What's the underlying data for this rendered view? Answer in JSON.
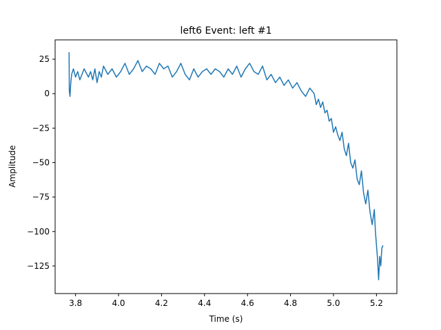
{
  "chart_data": {
    "type": "line",
    "title": "left6 Event: left #1",
    "xlabel": "Time (s)",
    "ylabel": "Amplitude",
    "xlim": [
      3.705,
      5.295
    ],
    "ylim": [
      -145,
      39
    ],
    "x_ticks": [
      3.8,
      4.0,
      4.2,
      4.4,
      4.6,
      4.8,
      5.0,
      5.2
    ],
    "x_tick_labels": [
      "3.8",
      "4.0",
      "4.2",
      "4.4",
      "4.6",
      "4.8",
      "5.0",
      "5.2"
    ],
    "y_ticks": [
      25,
      0,
      -25,
      -50,
      -75,
      -100,
      -125
    ],
    "y_tick_labels": [
      "25",
      "0",
      "−25",
      "−50",
      "−75",
      "−100",
      "−125"
    ],
    "grid": false,
    "series": [
      {
        "color": "#1f77b4",
        "x": [
          3.77,
          3.771,
          3.774,
          3.778,
          3.782,
          3.79,
          3.8,
          3.81,
          3.82,
          3.83,
          3.84,
          3.85,
          3.86,
          3.87,
          3.88,
          3.89,
          3.9,
          3.91,
          3.92,
          3.93,
          3.95,
          3.97,
          3.99,
          4.01,
          4.03,
          4.05,
          4.07,
          4.09,
          4.11,
          4.13,
          4.15,
          4.17,
          4.19,
          4.21,
          4.23,
          4.25,
          4.27,
          4.29,
          4.31,
          4.33,
          4.35,
          4.37,
          4.39,
          4.41,
          4.43,
          4.45,
          4.47,
          4.49,
          4.51,
          4.53,
          4.55,
          4.57,
          4.59,
          4.61,
          4.63,
          4.65,
          4.67,
          4.69,
          4.71,
          4.73,
          4.75,
          4.77,
          4.79,
          4.81,
          4.83,
          4.85,
          4.87,
          4.89,
          4.91,
          4.92,
          4.93,
          4.94,
          4.95,
          4.96,
          4.97,
          4.98,
          4.99,
          5.0,
          5.01,
          5.02,
          5.03,
          5.04,
          5.05,
          5.06,
          5.07,
          5.08,
          5.09,
          5.1,
          5.11,
          5.12,
          5.13,
          5.14,
          5.15,
          5.16,
          5.17,
          5.18,
          5.19,
          5.195,
          5.2,
          5.205,
          5.21,
          5.215,
          5.22,
          5.225,
          5.23
        ],
        "y": [
          30,
          2,
          -2,
          8,
          14,
          18,
          12,
          16,
          10,
          14,
          18,
          15,
          12,
          16,
          10,
          18,
          8,
          16,
          12,
          20,
          14,
          18,
          12,
          16,
          22,
          14,
          18,
          24,
          16,
          20,
          18,
          14,
          22,
          18,
          20,
          12,
          16,
          22,
          14,
          10,
          18,
          12,
          16,
          18,
          14,
          18,
          16,
          12,
          18,
          14,
          20,
          12,
          18,
          22,
          16,
          14,
          20,
          10,
          14,
          8,
          12,
          6,
          10,
          4,
          8,
          2,
          -2,
          4,
          0,
          -8,
          -4,
          -10,
          -6,
          -14,
          -12,
          -20,
          -18,
          -28,
          -24,
          -30,
          -34,
          -28,
          -40,
          -45,
          -36,
          -50,
          -54,
          -48,
          -62,
          -66,
          -56,
          -72,
          -80,
          -70,
          -86,
          -95,
          -84,
          -100,
          -110,
          -120,
          -135,
          -118,
          -125,
          -112,
          -110
        ]
      }
    ]
  }
}
